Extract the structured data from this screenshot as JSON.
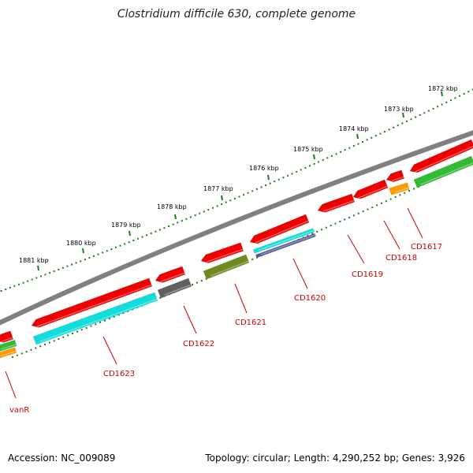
{
  "title": "Clostridium difficile 630, complete genome",
  "footer": {
    "accession": "Accession: NC_009089",
    "summary": "Topology: circular; Length: 4,290,252 bp; Genes: 3,926"
  },
  "colors": {
    "backbone": "#8a8a8a",
    "ticks": "#1f7a1f",
    "cds": "#ee0000",
    "label": "#cc0000",
    "cyan": "#11dddd",
    "gray": "#606060",
    "olive": "#6f8a1e",
    "green": "#33bb33",
    "orange": "#ff9900",
    "navy": "#555599"
  },
  "ruler": {
    "labels": [
      "1872 kbp",
      "1873 kbp",
      "1874 kbp",
      "1875 kbp",
      "1876 kbp",
      "1877 kbp",
      "1878 kbp",
      "1879 kbp",
      "1880 kbp",
      "1881 kbp"
    ]
  },
  "genes": [
    {
      "name": "CD1617"
    },
    {
      "name": "CD1618"
    },
    {
      "name": "CD1619"
    },
    {
      "name": "CD1620"
    },
    {
      "name": "CD1621"
    },
    {
      "name": "CD1622"
    },
    {
      "name": "CD1623"
    },
    {
      "name": "vanR"
    }
  ]
}
